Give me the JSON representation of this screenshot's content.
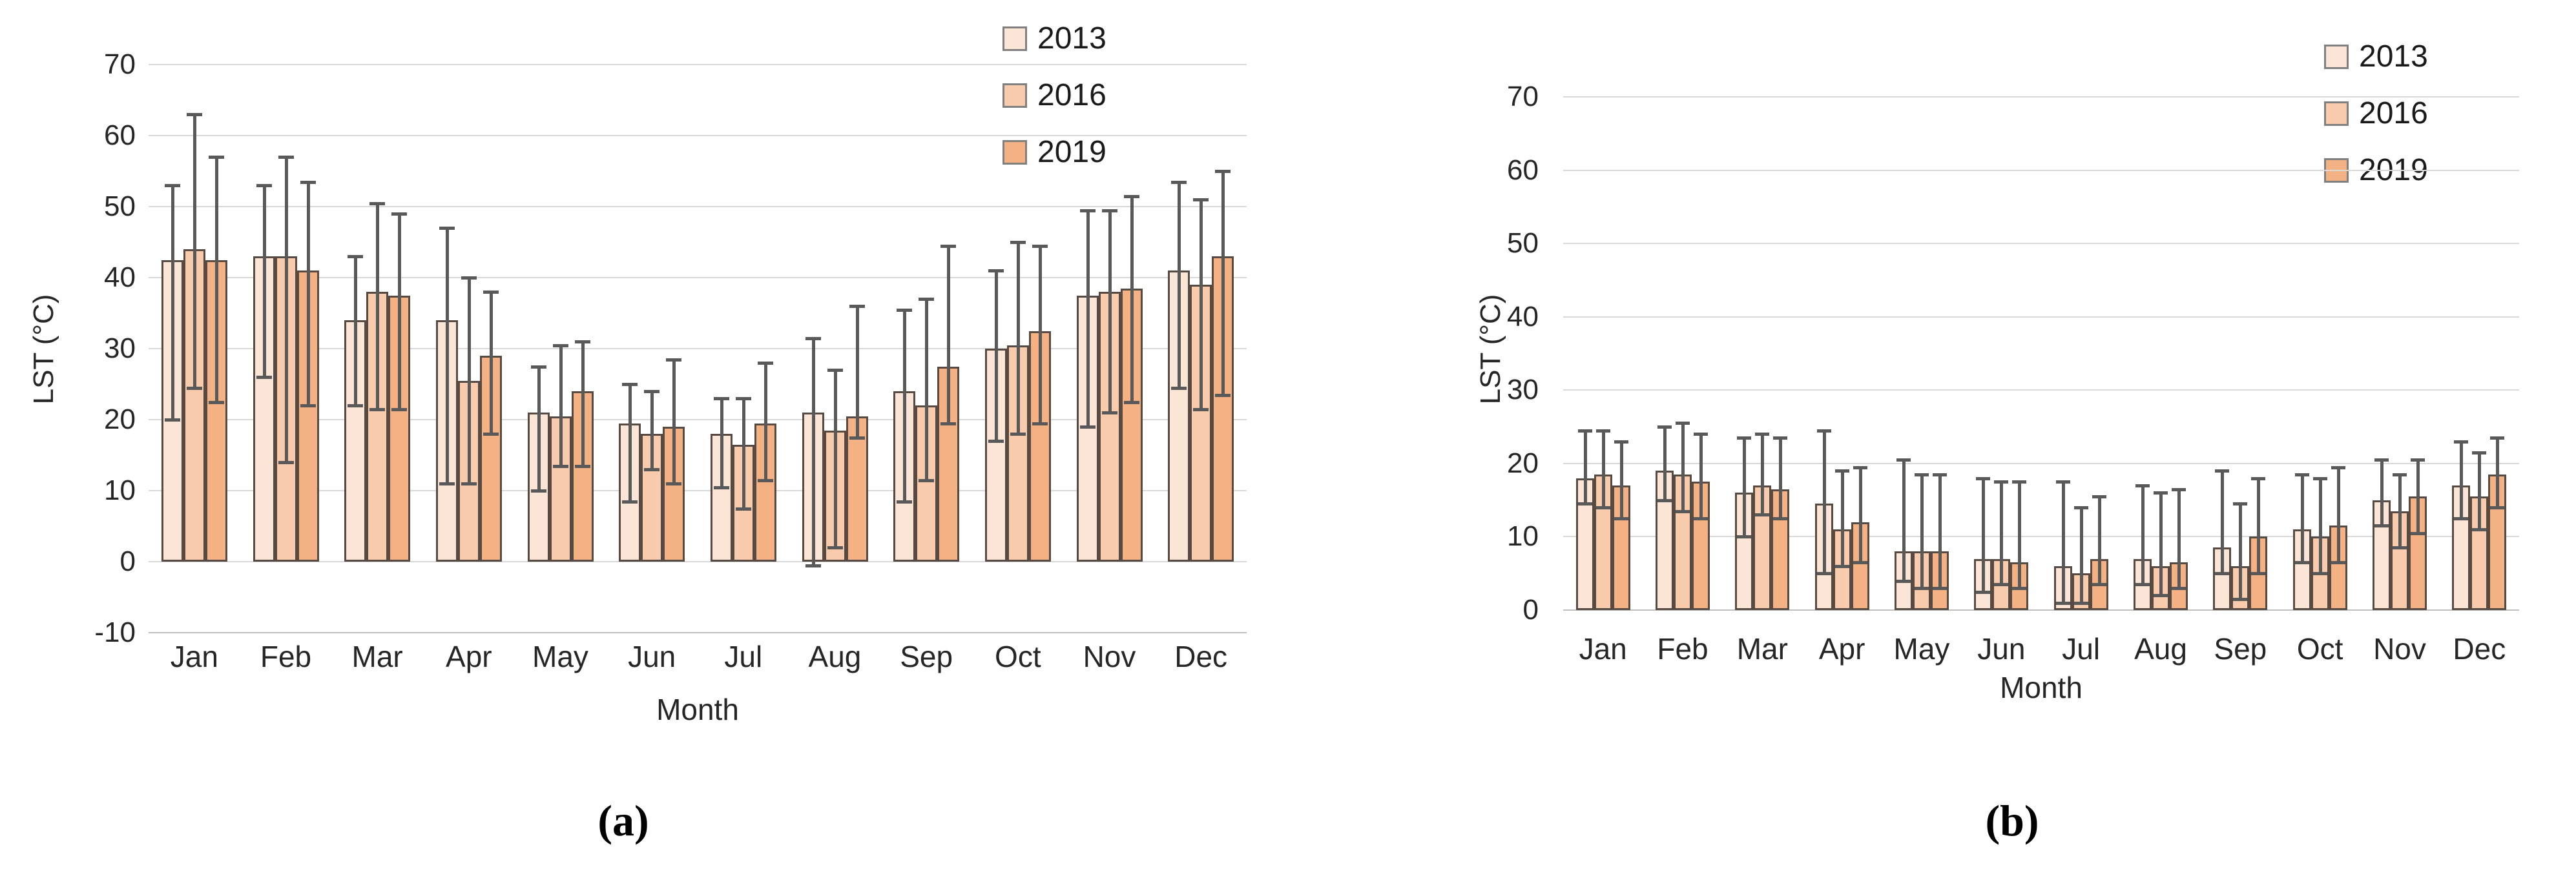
{
  "figure": {
    "captions": {
      "a": "(a)",
      "b": "(b)"
    }
  },
  "style": {
    "bar_border": "#564a42",
    "error_color": "#595959",
    "gridline": "#d9d9d9",
    "tick_color": "#262626",
    "legend_swatch_border": "#808080",
    "series_colors": {
      "2013": "#FBE5D6",
      "2016": "#F8CBAD",
      "2019": "#F4B183"
    }
  },
  "chart_data": [
    {
      "id": "a",
      "type": "bar",
      "title": "",
      "xlabel": "Month",
      "ylabel": "LST (°C)",
      "ylim": [
        -10,
        70
      ],
      "ytick_step": 10,
      "grid": true,
      "legend_position": "top-right",
      "legend_entries": [
        "2013",
        "2016",
        "2019"
      ],
      "categories": [
        "Jan",
        "Feb",
        "Mar",
        "Apr",
        "May",
        "Jun",
        "Jul",
        "Aug",
        "Sep",
        "Oct",
        "Nov",
        "Dec"
      ],
      "series": [
        {
          "name": "2013",
          "color": "#FBE5D6",
          "values": [
            42.5,
            43,
            34,
            34,
            21,
            19.5,
            18,
            21,
            24,
            30,
            37.5,
            41
          ],
          "err_high": [
            53,
            53,
            43,
            47,
            27.5,
            25,
            23,
            31.5,
            35.5,
            41,
            49.5,
            53.5
          ],
          "err_low": [
            20,
            26,
            22,
            11,
            10,
            8.5,
            10.5,
            -0.5,
            8.5,
            17,
            19,
            24.5
          ]
        },
        {
          "name": "2016",
          "color": "#F8CBAD",
          "values": [
            44,
            43,
            38,
            25.5,
            20.5,
            18,
            16.5,
            18.5,
            22,
            30.5,
            38,
            39
          ],
          "err_high": [
            63,
            57,
            50.5,
            40,
            30.5,
            24,
            23,
            27,
            37,
            45,
            49.5,
            51
          ],
          "err_low": [
            24.5,
            14,
            21.5,
            11,
            13.5,
            13,
            7.5,
            2,
            11.5,
            18,
            21,
            21.5
          ]
        },
        {
          "name": "2019",
          "color": "#F4B183",
          "values": [
            42.5,
            41,
            37.5,
            29,
            24,
            19,
            19.5,
            20.5,
            27.5,
            32.5,
            38.5,
            43
          ],
          "err_high": [
            57,
            53.5,
            49,
            38,
            31,
            28.5,
            28,
            36,
            44.5,
            44.5,
            51.5,
            55
          ],
          "err_low": [
            22.5,
            22,
            21.5,
            18,
            13.5,
            11,
            11.5,
            17.5,
            19.5,
            19.5,
            22.5,
            23.5
          ]
        }
      ]
    },
    {
      "id": "b",
      "type": "bar",
      "title": "",
      "xlabel": "Month",
      "ylabel": "LST (°C)",
      "ylim": [
        0,
        70
      ],
      "ytick_step": 10,
      "grid": true,
      "legend_position": "top-right",
      "legend_entries": [
        "2013",
        "2016",
        "2019"
      ],
      "categories": [
        "Jan",
        "Feb",
        "Mar",
        "Apr",
        "May",
        "Jun",
        "Jul",
        "Aug",
        "Sep",
        "Oct",
        "Nov",
        "Dec"
      ],
      "series": [
        {
          "name": "2013",
          "color": "#FBE5D6",
          "values": [
            18,
            19,
            16,
            14.5,
            8,
            7,
            6,
            7,
            8.5,
            11,
            15,
            17
          ],
          "err_high": [
            24.5,
            25,
            23.5,
            24.5,
            20.5,
            18,
            17.5,
            17,
            19,
            18.5,
            20.5,
            23
          ],
          "err_low": [
            14.5,
            15,
            10,
            5,
            4,
            2.5,
            1,
            3.5,
            5,
            6.5,
            11.5,
            12.5
          ]
        },
        {
          "name": "2016",
          "color": "#F8CBAD",
          "values": [
            18.5,
            18.5,
            17,
            11,
            8,
            7,
            5,
            6,
            6,
            10,
            13.5,
            15.5
          ],
          "err_high": [
            24.5,
            25.5,
            24,
            19,
            18.5,
            17.5,
            14,
            16,
            14.5,
            18,
            18.5,
            21.5
          ],
          "err_low": [
            14,
            13.5,
            13,
            6,
            3,
            3.5,
            1,
            2,
            1.5,
            5,
            8.5,
            11
          ]
        },
        {
          "name": "2019",
          "color": "#F4B183",
          "values": [
            17,
            17.5,
            16.5,
            12,
            8,
            6.5,
            7,
            6.5,
            10,
            11.5,
            15.5,
            18.5
          ],
          "err_high": [
            23,
            24,
            23.5,
            19.5,
            18.5,
            17.5,
            15.5,
            16.5,
            18,
            19.5,
            20.5,
            23.5
          ],
          "err_low": [
            12.5,
            12.5,
            12.5,
            6.5,
            3,
            3,
            3.5,
            3,
            5,
            6.5,
            10.5,
            14
          ]
        }
      ]
    }
  ]
}
